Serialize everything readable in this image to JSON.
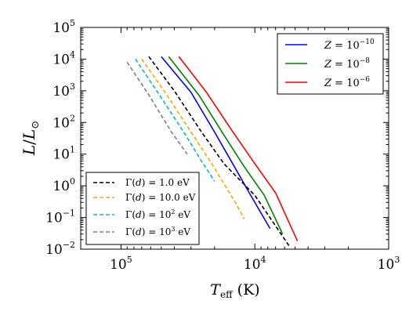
{
  "chart_data": {
    "type": "line",
    "xlabel": "T_eff (K)",
    "ylabel": "L/L_⊙",
    "x_scale": "log-reversed",
    "y_scale": "log",
    "xlim": [
      200000,
      1000
    ],
    "ylim": [
      0.01,
      100000
    ],
    "x_ticks": [
      {
        "value": 100000,
        "label": "10^5"
      },
      {
        "value": 10000,
        "label": "10^4"
      },
      {
        "value": 1000,
        "label": "10^3"
      }
    ],
    "y_ticks": [
      {
        "value": 0.01,
        "label": "10^-2"
      },
      {
        "value": 0.1,
        "label": "10^-1"
      },
      {
        "value": 1,
        "label": "10^0"
      },
      {
        "value": 10,
        "label": "10^1"
      },
      {
        "value": 100,
        "label": "10^2"
      },
      {
        "value": 1000,
        "label": "10^3"
      },
      {
        "value": 10000,
        "label": "10^4"
      },
      {
        "value": 100000,
        "label": "10^5"
      }
    ],
    "grid": false,
    "legends": [
      {
        "placement": "top-right",
        "entries": [
          "Z = 10^-10",
          "Z = 10^-8",
          "Z = 10^-6"
        ]
      },
      {
        "placement": "bottom-left",
        "entries": [
          "Γ(d) = 1.0 eV",
          "Γ(d) = 10.0 eV",
          "Γ(d) = 10^2 eV",
          "Γ(d) = 10^3 eV"
        ]
      }
    ],
    "series": [
      {
        "name": "Z = 10^-10",
        "color": "#0000ff",
        "style": "solid",
        "points": [
          [
            50000,
            12000
          ],
          [
            30000,
            900
          ],
          [
            20000,
            50
          ],
          [
            15000,
            6
          ],
          [
            11000,
            0.6
          ],
          [
            7700,
            0.045
          ]
        ]
      },
      {
        "name": "Z = 10^-8",
        "color": "#008000",
        "style": "solid",
        "points": [
          [
            44000,
            12000
          ],
          [
            26000,
            700
          ],
          [
            17000,
            40
          ],
          [
            12000,
            4
          ],
          [
            8500,
            0.5
          ],
          [
            6200,
            0.03
          ]
        ]
      },
      {
        "name": "Z = 10^-6",
        "color": "#ff0000",
        "style": "solid",
        "points": [
          [
            37000,
            12000
          ],
          [
            23000,
            900
          ],
          [
            15000,
            60
          ],
          [
            10000,
            5
          ],
          [
            7000,
            0.6
          ],
          [
            4800,
            0.018
          ]
        ]
      },
      {
        "name": "Γ(d) = 1.0 eV",
        "color": "#000000",
        "style": "dashed",
        "points": [
          [
            62000,
            12000
          ],
          [
            40000,
            1000
          ],
          [
            25000,
            50
          ],
          [
            17000,
            5
          ],
          [
            10000,
            0.5
          ],
          [
            5500,
            0.012
          ]
        ]
      },
      {
        "name": "Γ(d) = 10.0 eV",
        "color": "#ffa500",
        "style": "dashed",
        "points": [
          [
            70000,
            10000
          ],
          [
            45000,
            700
          ],
          [
            30000,
            50
          ],
          [
            21000,
            5
          ],
          [
            14000,
            0.3
          ],
          [
            12000,
            0.09
          ]
        ]
      },
      {
        "name": "Γ(d) = 10^2 eV",
        "color": "#00bfbf",
        "style": "dashed",
        "points": [
          [
            78000,
            10000
          ],
          [
            50000,
            600
          ],
          [
            34000,
            50
          ],
          [
            25000,
            6
          ],
          [
            20000,
            1.4
          ]
        ]
      },
      {
        "name": "Γ(d) = 10^3 eV",
        "color": "#808080",
        "style": "dashed",
        "points": [
          [
            90000,
            8000
          ],
          [
            60000,
            600
          ],
          [
            42000,
            50
          ],
          [
            32000,
            10
          ]
        ]
      }
    ]
  }
}
